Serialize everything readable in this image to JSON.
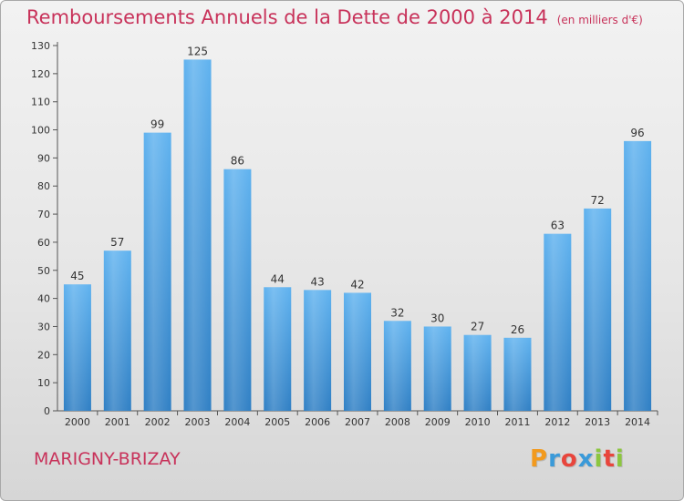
{
  "chart_data": {
    "type": "bar",
    "title": "Remboursements Annuels de la Dette de 2000 à 2014",
    "subtitle": "(en milliers d'€)",
    "categories": [
      "2000",
      "2001",
      "2002",
      "2003",
      "2004",
      "2005",
      "2006",
      "2007",
      "2008",
      "2009",
      "2010",
      "2011",
      "2012",
      "2013",
      "2014"
    ],
    "values": [
      45,
      57,
      99,
      125,
      86,
      44,
      43,
      42,
      32,
      30,
      27,
      26,
      63,
      72,
      96
    ],
    "ylim": [
      0,
      130
    ],
    "yticks": [
      0,
      10,
      20,
      30,
      40,
      50,
      60,
      70,
      80,
      90,
      100,
      110,
      120,
      130
    ],
    "xlabel": "",
    "ylabel": "",
    "grid": false,
    "bar_color": "#4ea3e6"
  },
  "footer": {
    "commune": "MARIGNY-BRIZAY",
    "brand_letters": [
      "P",
      "r",
      "o",
      "x",
      "i",
      "t",
      "i"
    ],
    "brand_colors": [
      "#f29a1e",
      "#3a9ad9",
      "#e8453c",
      "#3a9ad9",
      "#8cc63f",
      "#e8453c",
      "#8cc63f"
    ]
  }
}
